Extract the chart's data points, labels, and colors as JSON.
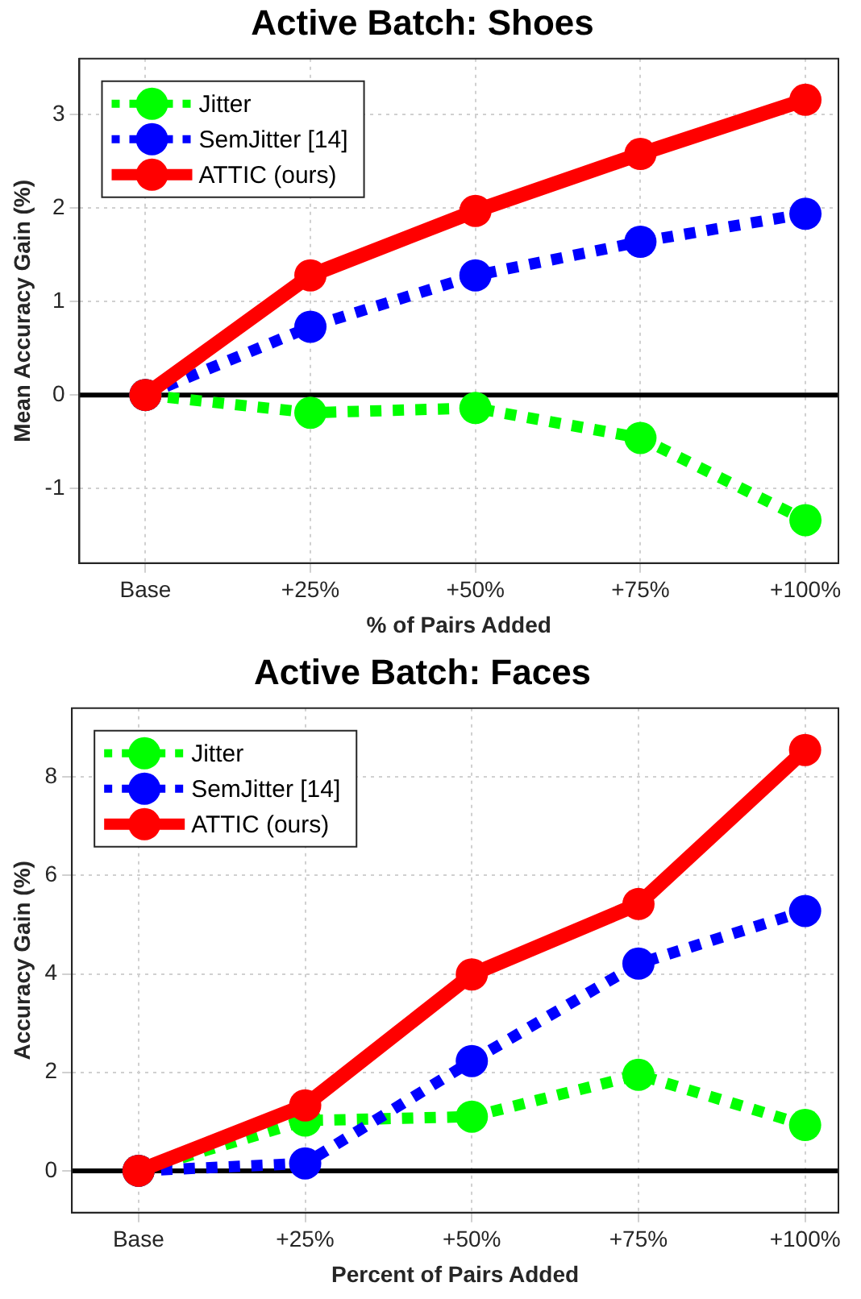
{
  "chart_data": [
    {
      "type": "line",
      "title": "Active Batch: Shoes",
      "xlabel": "% of Pairs Added",
      "ylabel": "Mean Accuracy Gain (%)",
      "categories": [
        "Base",
        "+25%",
        "+50%",
        "+75%",
        "+100%"
      ],
      "series": [
        {
          "name": "Jitter",
          "color": "#00ff00",
          "line_style": "dotted",
          "values": [
            0,
            -0.19,
            -0.14,
            -0.46,
            -1.34
          ]
        },
        {
          "name": "SemJitter [14]",
          "color": "#0000ff",
          "line_style": "dotted",
          "values": [
            0,
            0.73,
            1.28,
            1.64,
            1.94
          ]
        },
        {
          "name": "ATTIC (ours)",
          "color": "#ff0000",
          "line_style": "solid",
          "values": [
            0,
            1.28,
            1.97,
            2.58,
            3.16
          ]
        }
      ],
      "ylim": [
        -1.8,
        3.6
      ],
      "yticks": [
        -1,
        0,
        1,
        2,
        3
      ],
      "grid": true,
      "legend": "top left",
      "marker": "circle",
      "ref_lines": [
        {
          "axis": "y",
          "value": 0,
          "color": "#000000"
        }
      ]
    },
    {
      "type": "line",
      "title": "Active Batch: Faces",
      "xlabel": "Percent of Pairs Added",
      "ylabel": "Accuracy Gain (%)",
      "categories": [
        "Base",
        "+25%",
        "+50%",
        "+75%",
        "+100%"
      ],
      "series": [
        {
          "name": "Jitter",
          "color": "#00ff00",
          "line_style": "dotted",
          "values": [
            0,
            1.02,
            1.1,
            1.95,
            0.93
          ]
        },
        {
          "name": "SemJitter [14]",
          "color": "#0000ff",
          "line_style": "dotted",
          "values": [
            0,
            0.15,
            2.23,
            4.21,
            5.28
          ]
        },
        {
          "name": "ATTIC (ours)",
          "color": "#ff0000",
          "line_style": "solid",
          "values": [
            0,
            1.33,
            3.99,
            5.42,
            8.55
          ]
        }
      ],
      "ylim": [
        -0.85,
        9.4
      ],
      "yticks": [
        0,
        2,
        4,
        6,
        8
      ],
      "grid": true,
      "legend": "top left",
      "marker": "circle",
      "ref_lines": [
        {
          "axis": "y",
          "value": 0,
          "color": "#000000"
        }
      ]
    }
  ]
}
